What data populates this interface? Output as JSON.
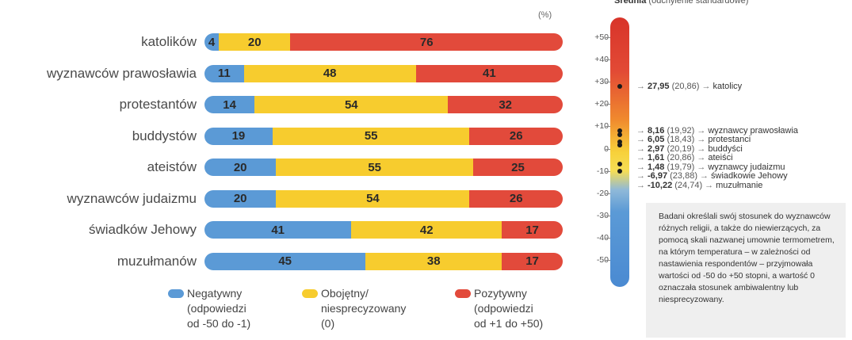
{
  "header": {
    "title_fragment": "",
    "unit": "(%)"
  },
  "legend": [
    {
      "lines": [
        "Negatywny",
        "(odpowiedzi",
        "od -50 do -1)"
      ],
      "color": "#5b9ad6"
    },
    {
      "lines": [
        "Obojętny/",
        "niesprecyzowany",
        "(0)"
      ],
      "color": "#f7cc2e"
    },
    {
      "lines": [
        "Pozytywny",
        "(odpowiedzi",
        "od +1 do +50)"
      ],
      "color": "#e24a3b"
    }
  ],
  "chart_data": [
    {
      "type": "bar",
      "orientation": "horizontal",
      "stacked": true,
      "unit": "%",
      "categories": [
        "katolików",
        "wyznawców prawosławia",
        "protestantów",
        "buddystów",
        "ateistów",
        "wyznawców judaizmu",
        "świadków Jehowy",
        "muzułmanów"
      ],
      "series": [
        {
          "name": "Negatywny",
          "values": [
            4,
            11,
            14,
            19,
            20,
            20,
            41,
            45
          ],
          "color": "#5b9ad6"
        },
        {
          "name": "Obojętny/ niesprecyzowany",
          "values": [
            20,
            48,
            54,
            55,
            55,
            54,
            42,
            38
          ],
          "color": "#f7cc2e"
        },
        {
          "name": "Pozytywny",
          "values": [
            76,
            41,
            32,
            26,
            25,
            26,
            17,
            17
          ],
          "color": "#e24a3b"
        }
      ]
    },
    {
      "type": "scatter",
      "title": "Średnia (odchylenie standardowe)",
      "y_ticks": [
        "+50",
        "+40",
        "+30",
        "+20",
        "+10",
        "0",
        "-10",
        "-20",
        "-30",
        "-40",
        "-50"
      ],
      "ylim": [
        -50,
        50
      ],
      "points": [
        {
          "label": "katolicy",
          "mean": 27.95,
          "mean_text": "27,95",
          "sd_text": "(20,86)"
        },
        {
          "label": "wyznawcy prawosławia",
          "mean": 8.16,
          "mean_text": "8,16",
          "sd_text": "(19,92)"
        },
        {
          "label": "protestanci",
          "mean": 6.05,
          "mean_text": "6,05",
          "sd_text": "(18,43)"
        },
        {
          "label": "buddyści",
          "mean": 2.97,
          "mean_text": "2,97",
          "sd_text": "(20,19)"
        },
        {
          "label": "ateiści",
          "mean": 1.61,
          "mean_text": "1,61",
          "sd_text": "(20,86)"
        },
        {
          "label": "wyznawcy judaizmu",
          "mean": 1.48,
          "mean_text": "1,48",
          "sd_text": "(19,79)"
        },
        {
          "label": "świadkowie Jehowy",
          "mean": -6.97,
          "mean_text": "-6,97",
          "sd_text": "(23,88)"
        },
        {
          "label": "muzułmanie",
          "mean": -10.22,
          "mean_text": "-10,22",
          "sd_text": "(24,74)"
        }
      ],
      "note": "Badani określali swój stosunek do wyznawców różnych religii, a także do niewierzących, za pomocą skali nazwanej umownie termometrem, na którym temperatura – w zależności od nastawienia respondentów – przyjmowała wartości od -50 do +50 stopni, a wartość 0 oznaczała stosunek ambiwalentny lub niesprecyzowany."
    }
  ]
}
